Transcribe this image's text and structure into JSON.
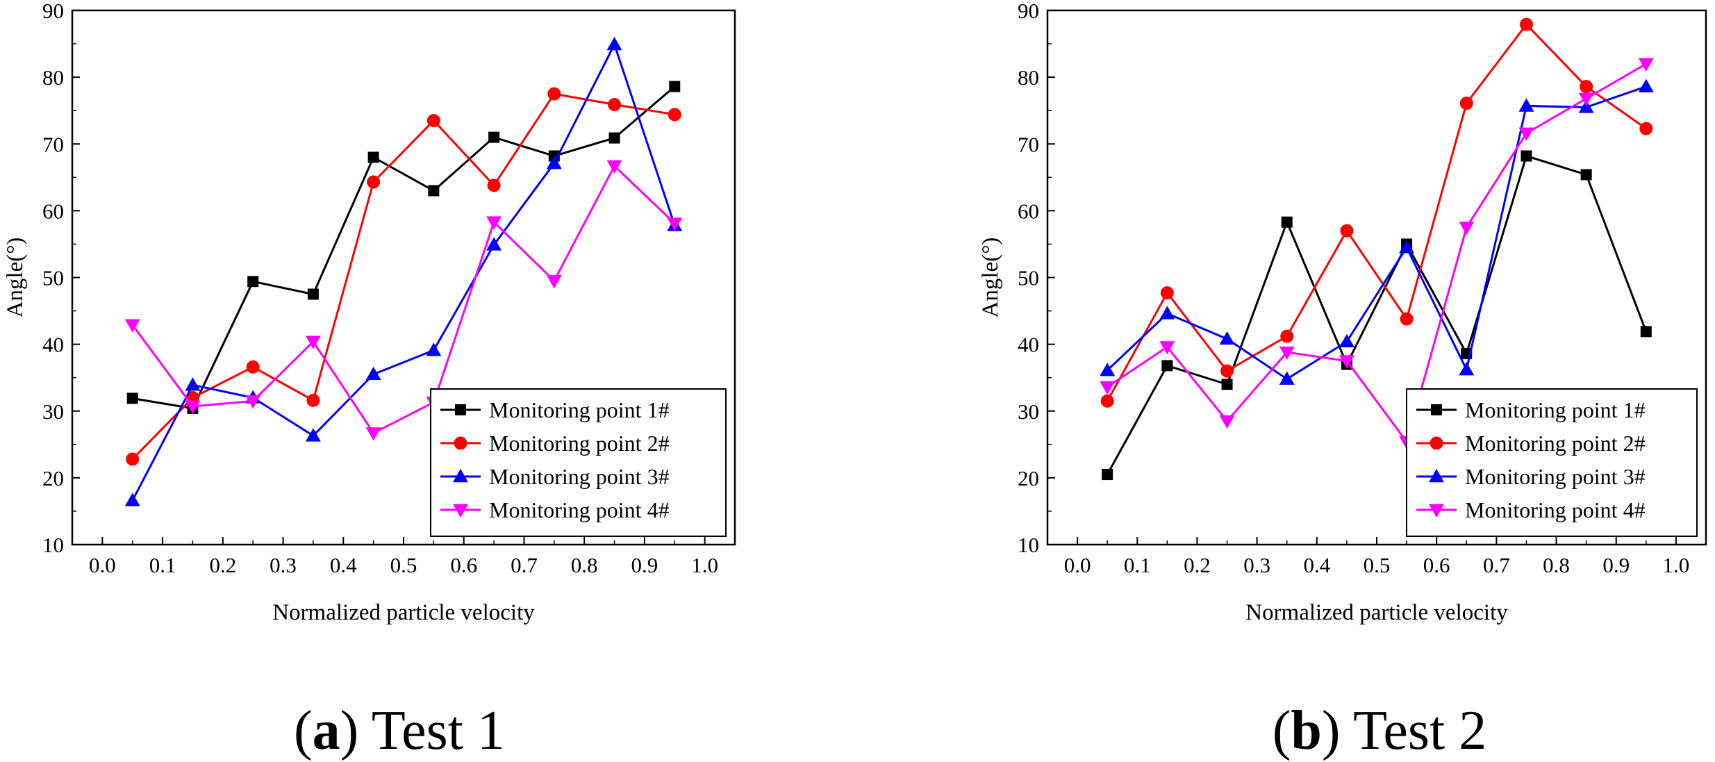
{
  "captions": [
    {
      "paren_open": "(",
      "letter": "a",
      "paren_close": ")",
      "label": " Test 1"
    },
    {
      "paren_open": "(",
      "letter": "b",
      "paren_close": ")",
      "label": " Test 2"
    }
  ],
  "chart_data": [
    {
      "type": "line",
      "title": "Test 1",
      "xlabel": "Normalized particle velocity",
      "ylabel": "Angle(°)",
      "xlim": [
        -0.05,
        1.05
      ],
      "ylim": [
        10,
        90
      ],
      "xticks": [
        0.0,
        0.1,
        0.2,
        0.3,
        0.4,
        0.5,
        0.6,
        0.7,
        0.8,
        0.9,
        1.0
      ],
      "xtick_labels": [
        "0.0",
        "0.1",
        "0.2",
        "0.3",
        "0.4",
        "0.5",
        "0.6",
        "0.7",
        "0.8",
        "0.9",
        "1.0"
      ],
      "yticks": [
        10,
        20,
        30,
        40,
        50,
        60,
        70,
        80,
        90
      ],
      "ytick_labels": [
        "10",
        "20",
        "30",
        "40",
        "50",
        "60",
        "70",
        "80",
        "90"
      ],
      "legend_position": "lower-right",
      "x": [
        0.05,
        0.15,
        0.25,
        0.35,
        0.45,
        0.55,
        0.65,
        0.75,
        0.85,
        0.95
      ],
      "series": [
        {
          "name": "Monitoring point 1#",
          "color": "#000000",
          "marker": "square",
          "values": [
            31.9,
            30.4,
            49.4,
            47.5,
            68.0,
            63.0,
            71.0,
            68.2,
            70.9,
            78.6
          ]
        },
        {
          "name": "Monitoring point 2#",
          "color": "#ff0000",
          "marker": "circle",
          "values": [
            22.8,
            32.0,
            36.6,
            31.6,
            64.3,
            73.5,
            63.8,
            77.5,
            75.9,
            74.4
          ]
        },
        {
          "name": "Monitoring point 3#",
          "color": "#0000ff",
          "marker": "triangle-up",
          "values": [
            16.6,
            33.9,
            32.0,
            26.3,
            35.5,
            39.1,
            54.9,
            67.1,
            84.9,
            57.8
          ]
        },
        {
          "name": "Monitoring point 4#",
          "color": "#ff00ff",
          "marker": "triangle-down",
          "values": [
            42.9,
            30.7,
            31.5,
            40.4,
            26.7,
            31.3,
            58.3,
            49.5,
            66.7,
            58.1
          ]
        }
      ]
    },
    {
      "type": "line",
      "title": "Test 2",
      "xlabel": "Normalized particle velocity",
      "ylabel": "Angle(°)",
      "xlim": [
        -0.05,
        1.05
      ],
      "ylim": [
        10,
        90
      ],
      "xticks": [
        0.0,
        0.1,
        0.2,
        0.3,
        0.4,
        0.5,
        0.6,
        0.7,
        0.8,
        0.9,
        1.0
      ],
      "xtick_labels": [
        "0.0",
        "0.1",
        "0.2",
        "0.3",
        "0.4",
        "0.5",
        "0.6",
        "0.7",
        "0.8",
        "0.9",
        "1.0"
      ],
      "yticks": [
        10,
        20,
        30,
        40,
        50,
        60,
        70,
        80,
        90
      ],
      "ytick_labels": [
        "10",
        "20",
        "30",
        "40",
        "50",
        "60",
        "70",
        "80",
        "90"
      ],
      "legend_position": "lower-right",
      "x": [
        0.05,
        0.15,
        0.25,
        0.35,
        0.45,
        0.55,
        0.65,
        0.75,
        0.85,
        0.95
      ],
      "series": [
        {
          "name": "Monitoring point 1#",
          "color": "#000000",
          "marker": "square",
          "values": [
            20.5,
            36.8,
            34.0,
            58.3,
            37.0,
            55.0,
            38.6,
            68.2,
            65.4,
            41.9
          ]
        },
        {
          "name": "Monitoring point 2#",
          "color": "#ff0000",
          "marker": "circle",
          "values": [
            31.5,
            47.7,
            36.0,
            41.2,
            57.0,
            43.8,
            76.1,
            87.9,
            78.6,
            72.3
          ]
        },
        {
          "name": "Monitoring point 3#",
          "color": "#0000ff",
          "marker": "triangle-up",
          "values": [
            36.1,
            44.6,
            40.8,
            34.8,
            40.4,
            54.5,
            36.2,
            75.7,
            75.5,
            78.6
          ]
        },
        {
          "name": "Monitoring point 4#",
          "color": "#ff00ff",
          "marker": "triangle-down",
          "values": [
            33.6,
            39.6,
            28.5,
            38.8,
            37.5,
            25.4,
            57.5,
            71.6,
            76.8,
            82.0
          ]
        }
      ]
    }
  ]
}
